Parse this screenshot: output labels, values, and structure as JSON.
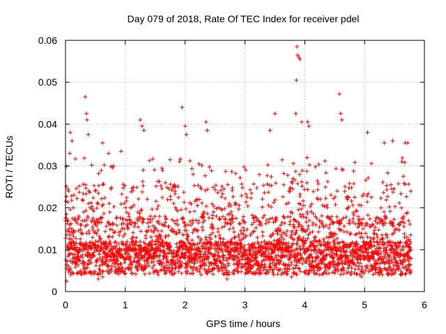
{
  "chart_data": {
    "type": "scatter",
    "title": "Day 079 of 2018, Rate Of TEC Index for receiver pdel",
    "xlabel": "GPS time / hours",
    "ylabel": "ROTI / TECUs",
    "xlim": [
      0,
      6
    ],
    "ylim": [
      0,
      0.06
    ],
    "x_ticks": [
      0,
      1,
      2,
      3,
      4,
      5,
      6
    ],
    "x_tick_labels": [
      "0",
      "1",
      "2",
      "3",
      "4",
      "5",
      "6"
    ],
    "y_ticks": [
      0,
      0.01,
      0.02,
      0.03,
      0.04,
      0.05,
      0.06
    ],
    "y_tick_labels": [
      "0",
      "0.01",
      "0.02",
      "0.03",
      "0.04",
      "0.05",
      "0.06"
    ],
    "grid": true,
    "marker": "+",
    "marker_color": "#ff0000",
    "x_range_observed": [
      0,
      5.78
    ],
    "series": [
      {
        "name": "ROTI",
        "points": [
          [
            0.02,
            0.0025
          ],
          [
            0.05,
            0.024
          ],
          [
            0.07,
            0.033
          ],
          [
            0.08,
            0.038
          ],
          [
            0.11,
            0.036
          ],
          [
            0.33,
            0.0465
          ],
          [
            0.35,
            0.0425
          ],
          [
            0.36,
            0.041
          ],
          [
            0.38,
            0.0375
          ],
          [
            0.62,
            0.0355
          ],
          [
            0.72,
            0.033
          ],
          [
            0.93,
            0.0335
          ],
          [
            1.25,
            0.041
          ],
          [
            1.28,
            0.0395
          ],
          [
            1.31,
            0.0385
          ],
          [
            1.95,
            0.044
          ],
          [
            2.0,
            0.0395
          ],
          [
            2.02,
            0.0375
          ],
          [
            2.35,
            0.0405
          ],
          [
            2.37,
            0.0385
          ],
          [
            3.5,
            0.0425
          ],
          [
            3.42,
            0.0385
          ],
          [
            3.85,
            0.0425
          ],
          [
            3.86,
            0.0505
          ],
          [
            3.87,
            0.0585
          ],
          [
            3.88,
            0.0565
          ],
          [
            3.9,
            0.056
          ],
          [
            3.92,
            0.0555
          ],
          [
            3.95,
            0.0405
          ],
          [
            4.05,
            0.0405
          ],
          [
            4.07,
            0.0395
          ],
          [
            4.58,
            0.0472
          ],
          [
            4.6,
            0.0425
          ],
          [
            4.62,
            0.041
          ],
          [
            5.05,
            0.038
          ],
          [
            5.33,
            0.0355
          ],
          [
            5.47,
            0.036
          ],
          [
            5.68,
            0.0355
          ],
          [
            5.72,
            0.0355
          ],
          [
            0.55,
            0.003
          ],
          [
            0.62,
            0.0035
          ],
          [
            1.55,
            0.004
          ],
          [
            2.7,
            0.003
          ],
          [
            3.78,
            0.0035
          ],
          [
            4.25,
            0.004
          ],
          [
            4.95,
            0.0035
          ],
          [
            5.45,
            0.004
          ],
          [
            5.75,
            0.005
          ]
        ]
      }
    ]
  }
}
